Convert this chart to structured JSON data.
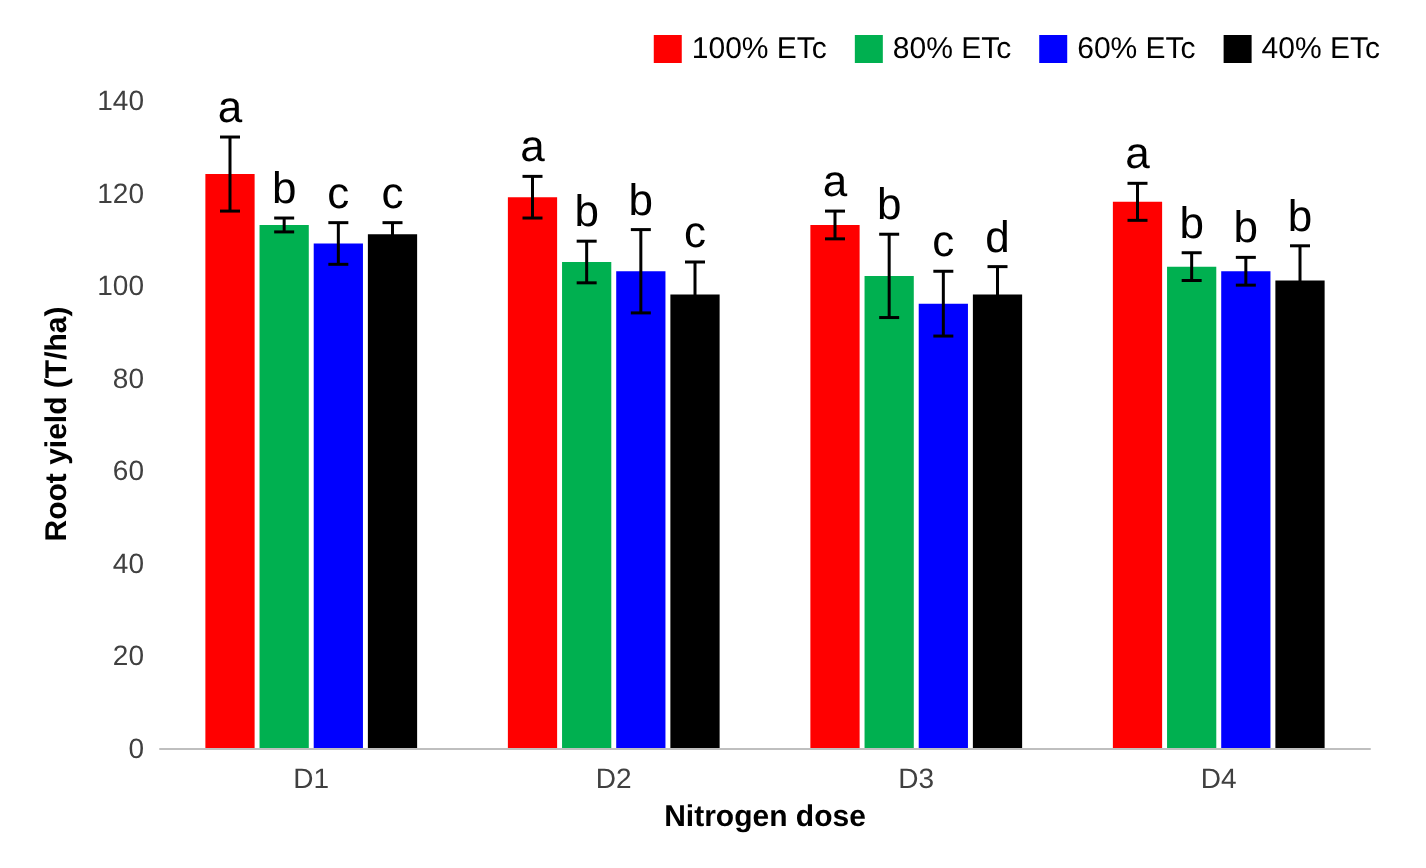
{
  "chart_data": {
    "type": "bar",
    "xlabel": "Nitrogen dose",
    "ylabel": "Root yield (T/ha)",
    "categories": [
      "D1",
      "D2",
      "D3",
      "D4"
    ],
    "series": [
      {
        "name": "100% ETc",
        "color": "#ff0000",
        "values": [
          124,
          119,
          113,
          118
        ],
        "errors": [
          8,
          4.5,
          3,
          4
        ],
        "value_labels": [
          "a",
          "a",
          "a",
          "a"
        ]
      },
      {
        "name": "80% ETc",
        "color": "#00b050",
        "values": [
          113,
          105,
          102,
          104
        ],
        "errors": [
          1.5,
          4.5,
          9,
          3
        ],
        "value_labels": [
          "b",
          "b",
          "b",
          "b"
        ]
      },
      {
        "name": "60% ETc",
        "color": "#0000ff",
        "values": [
          109,
          103,
          96,
          103
        ],
        "errors": [
          4.5,
          9,
          7,
          3
        ],
        "value_labels": [
          "c",
          "b",
          "c",
          "b"
        ]
      },
      {
        "name": "40% ETc",
        "color": "#000000",
        "values": [
          111,
          98,
          98,
          101
        ],
        "errors": [
          2.5,
          7,
          6,
          7.5
        ],
        "value_labels": [
          "c",
          "c",
          "d",
          "b"
        ]
      }
    ],
    "ylim": [
      0,
      140
    ],
    "yticks": [
      0,
      20,
      40,
      60,
      80,
      100,
      120,
      140
    ],
    "grid": false,
    "legend": "top right"
  }
}
